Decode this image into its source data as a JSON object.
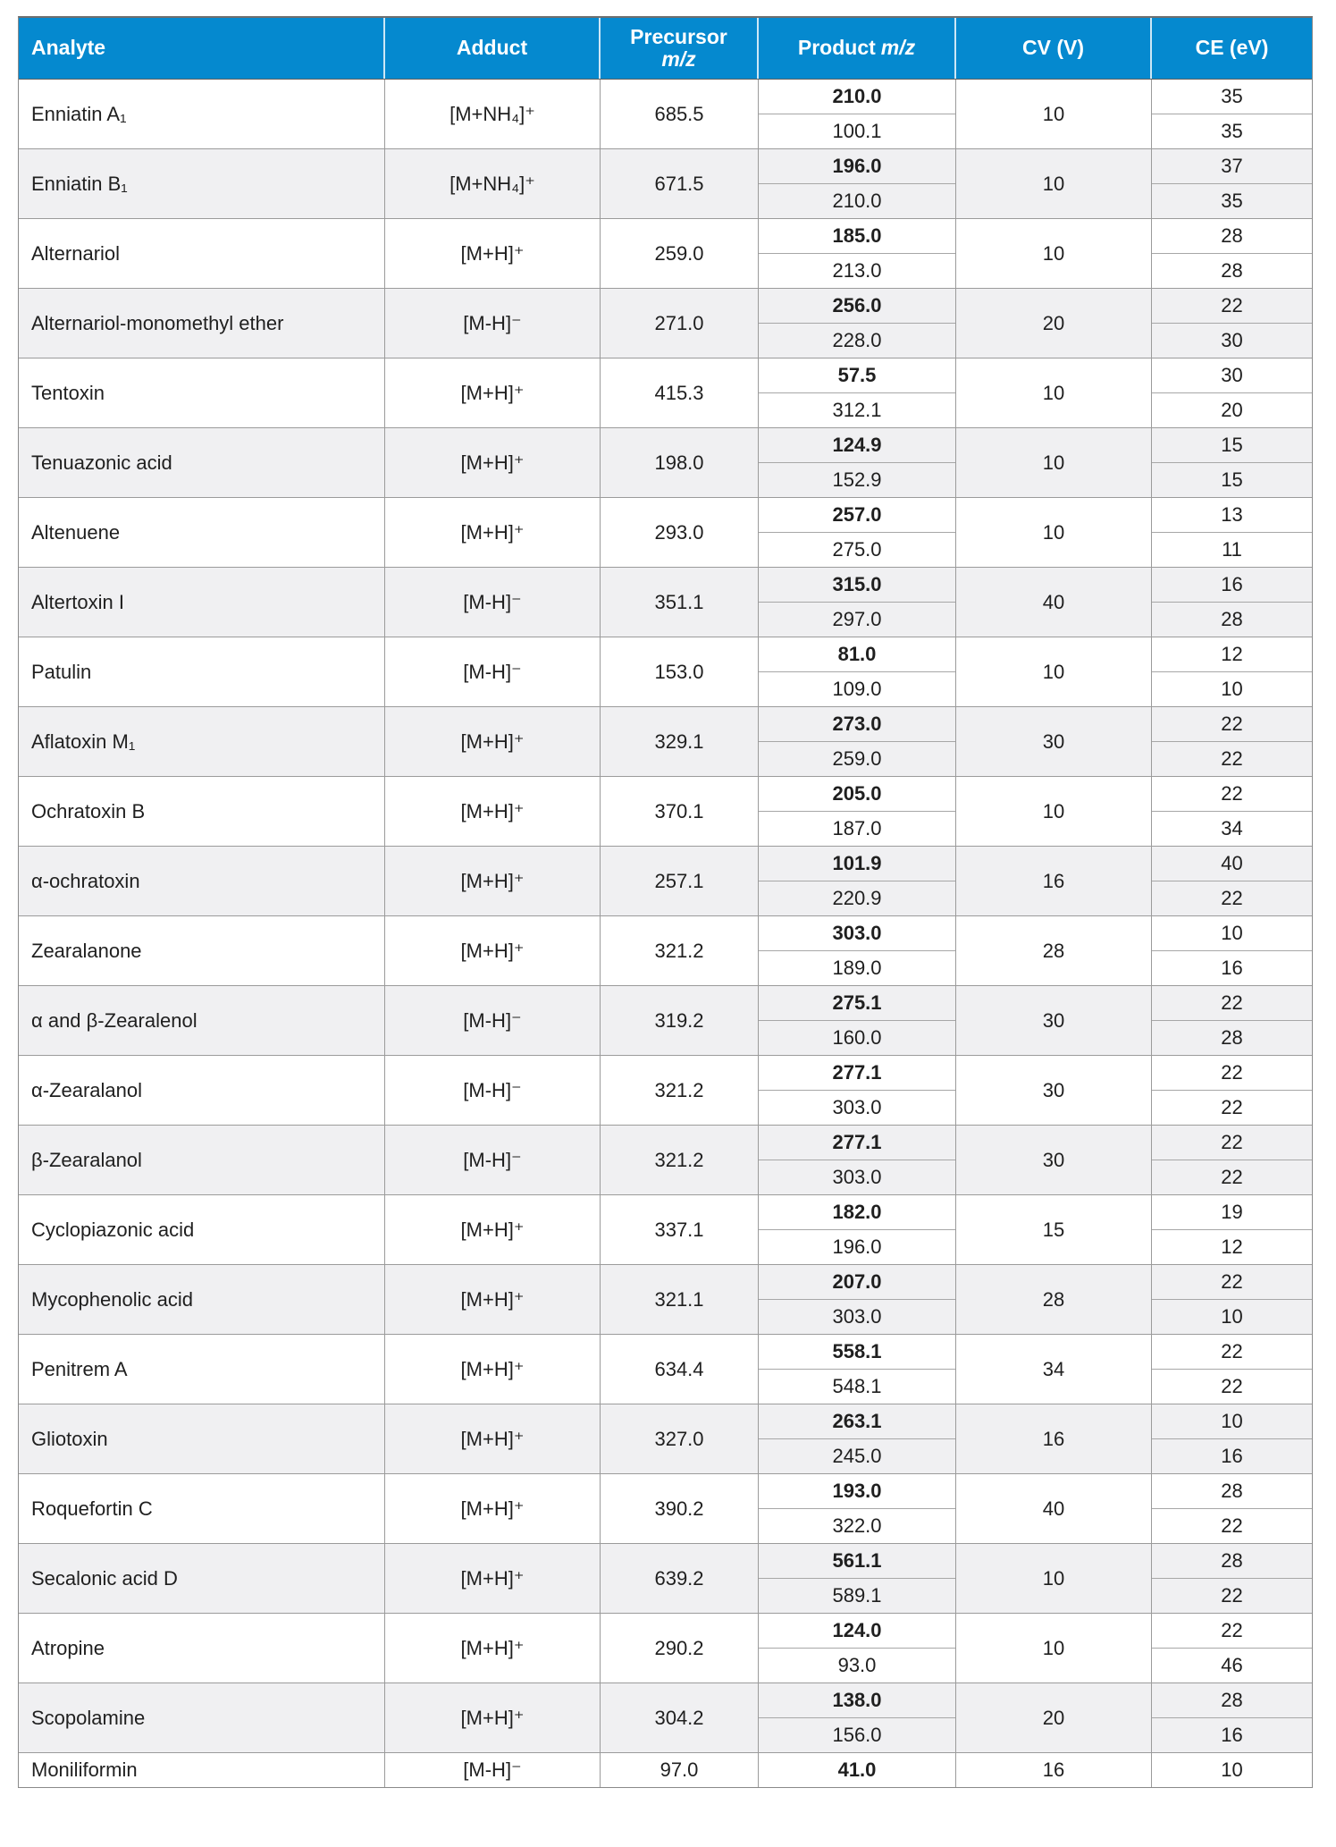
{
  "colors": {
    "header_bg": "#0589cf",
    "header_text": "#ffffff",
    "row_alt_bg": "#f0f0f2",
    "body_text": "#1f1f1f",
    "border": "#9b9b9b"
  },
  "table": {
    "header": {
      "analyte": "Analyte",
      "adduct": "Adduct",
      "precursor_word": "Precursor",
      "precursor_italic": "m/z",
      "product_word": "Product",
      "product_italic": "m/z",
      "cv": "CV (V)",
      "ce": "CE (eV)"
    },
    "rows": [
      {
        "analyte": "Enniatin A₁",
        "adduct": "[M+NH₄]⁺",
        "precursor": "685.5",
        "products": [
          "210.0",
          "100.1"
        ],
        "cv": "10",
        "ce": [
          "35",
          "35"
        ]
      },
      {
        "analyte": "Enniatin B₁",
        "adduct": "[M+NH₄]⁺",
        "precursor": "671.5",
        "products": [
          "196.0",
          "210.0"
        ],
        "cv": "10",
        "ce": [
          "37",
          "35"
        ]
      },
      {
        "analyte": "Alternariol",
        "adduct": "[M+H]⁺",
        "precursor": "259.0",
        "products": [
          "185.0",
          "213.0"
        ],
        "cv": "10",
        "ce": [
          "28",
          "28"
        ]
      },
      {
        "analyte": "Alternariol-monomethyl ether",
        "adduct": "[M-H]⁻",
        "precursor": "271.0",
        "products": [
          "256.0",
          "228.0"
        ],
        "cv": "20",
        "ce": [
          "22",
          "30"
        ]
      },
      {
        "analyte": "Tentoxin",
        "adduct": "[M+H]⁺",
        "precursor": "415.3",
        "products": [
          "57.5",
          "312.1"
        ],
        "cv": "10",
        "ce": [
          "30",
          "20"
        ]
      },
      {
        "analyte": "Tenuazonic acid",
        "adduct": "[M+H]⁺",
        "precursor": "198.0",
        "products": [
          "124.9",
          "152.9"
        ],
        "cv": "10",
        "ce": [
          "15",
          "15"
        ]
      },
      {
        "analyte": "Altenuene",
        "adduct": "[M+H]⁺",
        "precursor": "293.0",
        "products": [
          "257.0",
          "275.0"
        ],
        "cv": "10",
        "ce": [
          "13",
          "11"
        ]
      },
      {
        "analyte": "Altertoxin I",
        "adduct": "[M-H]⁻",
        "precursor": "351.1",
        "products": [
          "315.0",
          "297.0"
        ],
        "cv": "40",
        "ce": [
          "16",
          "28"
        ]
      },
      {
        "analyte": "Patulin",
        "adduct": "[M-H]⁻",
        "precursor": "153.0",
        "products": [
          "81.0",
          "109.0"
        ],
        "cv": "10",
        "ce": [
          "12",
          "10"
        ]
      },
      {
        "analyte": "Aflatoxin M₁",
        "adduct": "[M+H]⁺",
        "precursor": "329.1",
        "products": [
          "273.0",
          "259.0"
        ],
        "cv": "30",
        "ce": [
          "22",
          "22"
        ]
      },
      {
        "analyte": "Ochratoxin B",
        "adduct": "[M+H]⁺",
        "precursor": "370.1",
        "products": [
          "205.0",
          "187.0"
        ],
        "cv": "10",
        "ce": [
          "22",
          "34"
        ]
      },
      {
        "analyte": "α-ochratoxin",
        "adduct": "[M+H]⁺",
        "precursor": "257.1",
        "products": [
          "101.9",
          "220.9"
        ],
        "cv": "16",
        "ce": [
          "40",
          "22"
        ]
      },
      {
        "analyte": "Zearalanone",
        "adduct": "[M+H]⁺",
        "precursor": "321.2",
        "products": [
          "303.0",
          "189.0"
        ],
        "cv": "28",
        "ce": [
          "10",
          "16"
        ]
      },
      {
        "analyte": "α and β-Zearalenol",
        "adduct": "[M-H]⁻",
        "precursor": "319.2",
        "products": [
          "275.1",
          "160.0"
        ],
        "cv": "30",
        "ce": [
          "22",
          "28"
        ]
      },
      {
        "analyte": "α-Zearalanol",
        "adduct": "[M-H]⁻",
        "precursor": "321.2",
        "products": [
          "277.1",
          "303.0"
        ],
        "cv": "30",
        "ce": [
          "22",
          "22"
        ]
      },
      {
        "analyte": "β-Zearalanol",
        "adduct": "[M-H]⁻",
        "precursor": "321.2",
        "products": [
          "277.1",
          "303.0"
        ],
        "cv": "30",
        "ce": [
          "22",
          "22"
        ]
      },
      {
        "analyte": "Cyclopiazonic acid",
        "adduct": "[M+H]⁺",
        "precursor": "337.1",
        "products": [
          "182.0",
          "196.0"
        ],
        "cv": "15",
        "ce": [
          "19",
          "12"
        ]
      },
      {
        "analyte": "Mycophenolic acid",
        "adduct": "[M+H]⁺",
        "precursor": "321.1",
        "products": [
          "207.0",
          "303.0"
        ],
        "cv": "28",
        "ce": [
          "22",
          "10"
        ]
      },
      {
        "analyte": "Penitrem A",
        "adduct": "[M+H]⁺",
        "precursor": "634.4",
        "products": [
          "558.1",
          "548.1"
        ],
        "cv": "34",
        "ce": [
          "22",
          "22"
        ]
      },
      {
        "analyte": "Gliotoxin",
        "adduct": "[M+H]⁺",
        "precursor": "327.0",
        "products": [
          "263.1",
          "245.0"
        ],
        "cv": "16",
        "ce": [
          "10",
          "16"
        ]
      },
      {
        "analyte": "Roquefortin C",
        "adduct": "[M+H]⁺",
        "precursor": "390.2",
        "products": [
          "193.0",
          "322.0"
        ],
        "cv": "40",
        "ce": [
          "28",
          "22"
        ]
      },
      {
        "analyte": "Secalonic acid D",
        "adduct": "[M+H]⁺",
        "precursor": "639.2",
        "products": [
          "561.1",
          "589.1"
        ],
        "cv": "10",
        "ce": [
          "28",
          "22"
        ]
      },
      {
        "analyte": "Atropine",
        "adduct": "[M+H]⁺",
        "precursor": "290.2",
        "products": [
          "124.0",
          "93.0"
        ],
        "cv": "10",
        "ce": [
          "22",
          "46"
        ]
      },
      {
        "analyte": "Scopolamine",
        "adduct": "[M+H]⁺",
        "precursor": "304.2",
        "products": [
          "138.0",
          "156.0"
        ],
        "cv": "20",
        "ce": [
          "28",
          "16"
        ]
      },
      {
        "analyte": "Moniliformin",
        "adduct": "[M-H]⁻",
        "precursor": "97.0",
        "products": [
          "41.0"
        ],
        "cv": "16",
        "ce": [
          "10"
        ]
      }
    ]
  }
}
